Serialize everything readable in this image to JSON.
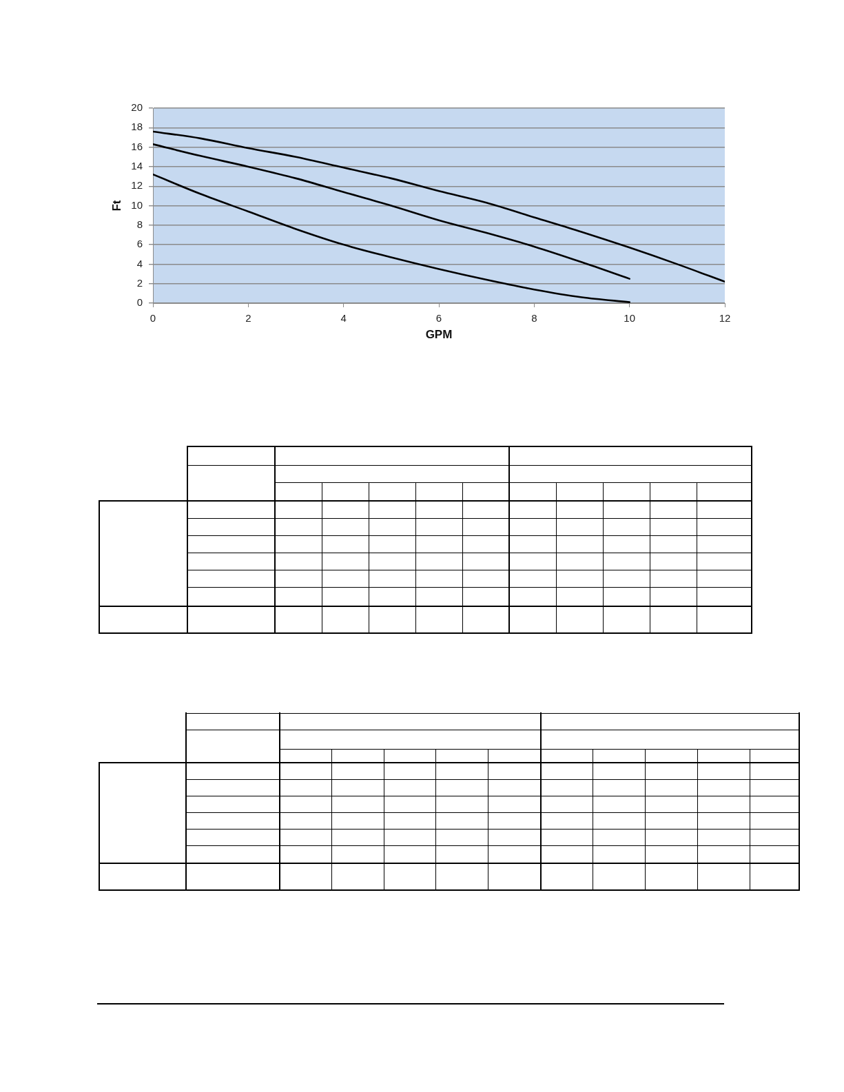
{
  "chart_data": {
    "type": "line",
    "xlabel": "GPM",
    "ylabel": "Ft",
    "series": [
      {
        "color": "#000000",
        "x": [
          0,
          1,
          2,
          3,
          4,
          5,
          6,
          7,
          8,
          9,
          10,
          11,
          12
        ],
        "values": [
          17.6,
          16.9,
          15.9,
          15.0,
          13.9,
          12.8,
          11.5,
          10.3,
          8.8,
          7.3,
          5.7,
          4.0,
          2.2
        ]
      },
      {
        "color": "#000000",
        "x": [
          0,
          1,
          2,
          3,
          4,
          5,
          6,
          7,
          8,
          9,
          10
        ],
        "values": [
          16.3,
          15.1,
          14.0,
          12.8,
          11.4,
          10.0,
          8.5,
          7.2,
          5.8,
          4.2,
          2.5
        ]
      },
      {
        "color": "#000000",
        "x": [
          0,
          1,
          2,
          3,
          4,
          5,
          6,
          7,
          8,
          9,
          10
        ],
        "values": [
          13.2,
          11.2,
          9.4,
          7.6,
          6.0,
          4.7,
          3.5,
          2.4,
          1.4,
          0.6,
          0.1
        ]
      }
    ],
    "xlim": [
      0,
      12
    ],
    "xticks": [
      0,
      2,
      4,
      6,
      8,
      10,
      12
    ],
    "ylim": [
      0,
      20
    ],
    "yticks": [
      0,
      2,
      4,
      6,
      8,
      10,
      12,
      14,
      16,
      18,
      20
    ],
    "grid": "y"
  }
}
